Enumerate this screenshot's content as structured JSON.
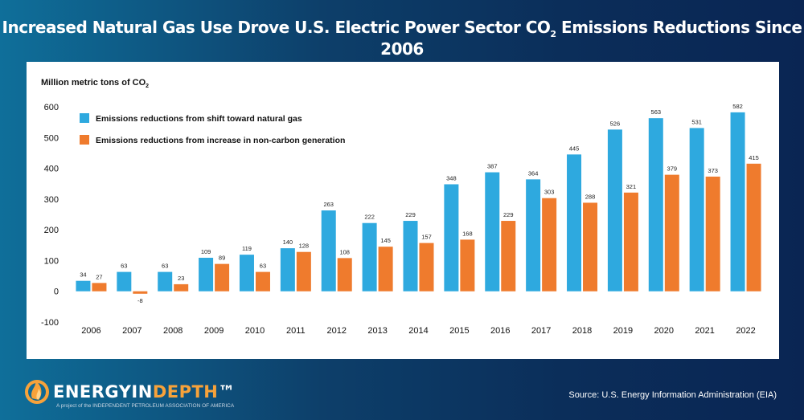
{
  "header": {
    "title_main": "Increased Natural Gas Use Drove U.S. Electric Power Sector CO",
    "title_sub": "2",
    "title_end": " Emissions Reductions Since 2006"
  },
  "footer": {
    "brand_part1": "ENERGYIN",
    "brand_part2": "DEPTH",
    "tagline": "A project of the INDEPENDENT PETROLEUM ASSOCIATION OF AMERICA",
    "source": "Source: U.S. Energy Information Administration (EIA)",
    "logo_icon": "flame-icon"
  },
  "chart_data": {
    "type": "bar",
    "ylabel_main": "Million metric tons of CO",
    "ylabel_sub": "2",
    "categories": [
      "2006",
      "2007",
      "2008",
      "2009",
      "2010",
      "2011",
      "2012",
      "2013",
      "2014",
      "2015",
      "2016",
      "2017",
      "2018",
      "2019",
      "2020",
      "2021",
      "2022"
    ],
    "series": [
      {
        "name": "Emissions reductions from shift toward natural gas",
        "color": "#2ea9df",
        "values": [
          34,
          63,
          63,
          109,
          119,
          140,
          263,
          222,
          229,
          348,
          387,
          364,
          445,
          526,
          563,
          531,
          582
        ]
      },
      {
        "name": "Emissions reductions from increase in non-carbon generation",
        "color": "#ef7b2d",
        "values": [
          27,
          -8,
          23,
          89,
          63,
          128,
          108,
          145,
          157,
          168,
          229,
          303,
          288,
          321,
          379,
          373,
          415
        ]
      }
    ],
    "yticks": [
      -100,
      0,
      100,
      200,
      300,
      400,
      500,
      600
    ],
    "ylim": [
      -100,
      600
    ],
    "legend": "top-left",
    "grid": false
  }
}
